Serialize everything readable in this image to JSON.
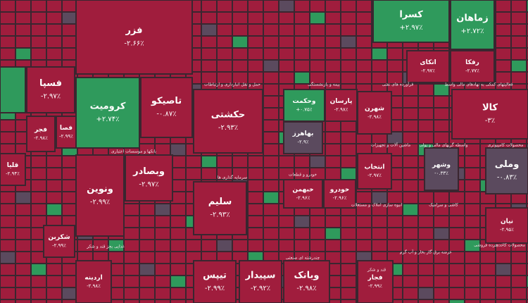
{
  "tiles": [
    {
      "name": "فزر",
      "change": "-۲.۶۶٪"
    },
    {
      "name": "کرومیت",
      "change": "+۲.۷۴٪"
    },
    {
      "name": "تاصیکو",
      "change": "-۰.۸۷٪"
    },
    {
      "name": "فسپا",
      "change": "-۲.۹۷٪"
    },
    {
      "name": "فجر",
      "change": "-۲.۹۸٪"
    },
    {
      "name": "فصا",
      "change": "-۲.۹۹٪"
    },
    {
      "name": "حکشتی",
      "change": "-۲.۹۳٪"
    },
    {
      "name": "وحکمت",
      "change": "+۰.۷۵٪"
    },
    {
      "name": "پارسان",
      "change": "-۲.۹۸٪"
    },
    {
      "name": "کسرا",
      "change": "+۲.۹۷٪"
    },
    {
      "name": "زماهان",
      "change": "+۲.۷۲٪"
    },
    {
      "name": "رفکا",
      "change": "-۲.۷۷٪"
    },
    {
      "name": "شهرن",
      "change": "-۲.۹۸٪"
    },
    {
      "name": "کالا",
      "change": "-۳٪"
    },
    {
      "name": "وشهر",
      "change": "-۰.۳۳٪"
    },
    {
      "name": "وملی",
      "change": "-۰.۸۳٪"
    },
    {
      "name": "ونوین",
      "change": "-۲.۹۹٪"
    },
    {
      "name": "وبصادر",
      "change": "-۲.۹۷٪"
    },
    {
      "name": "سلیم",
      "change": "-۲.۹۳٪"
    },
    {
      "name": "خبهمن",
      "change": "-۲.۹۶٪"
    },
    {
      "name": "خودرو",
      "change": "-۲.۹۶٪"
    },
    {
      "name": "انتخاب",
      "change": "-۲.۹۷٪"
    },
    {
      "name": "وبانک",
      "change": "-۲.۹۸٪"
    },
    {
      "name": "تیپس",
      "change": "-۲.۹۹٪"
    },
    {
      "name": "سپیدار",
      "change": "-۲.۹۲٪"
    },
    {
      "name": "فجار",
      "change": "-۲.۹۹٪"
    },
    {
      "name": "نیان",
      "change": "-۲.۹۵٪"
    },
    {
      "name": "بهاهرز",
      "change": "-۲.۹٪"
    },
    {
      "name": "قلیا",
      "change": "-۲.۹۴٪"
    },
    {
      "name": "اردینه",
      "change": "-۲.۹۸٪"
    },
    {
      "name": "شکربن",
      "change": "-۲.۹۹٪"
    },
    {
      "name": "اتکای",
      "change": "-۲.۹۷٪"
    }
  ],
  "sectors": [
    "بانکها و موسسات اعتباری",
    "حمل و نقل انبارداری و ارتباطات",
    "بیمه و بازنشستگی",
    "فرآورده های نفتی",
    "فعالیتهای کمکی به نهادهای مالی واسط",
    "ماشین آلات و تجهیزات",
    "واسطه گریهای مالی و پولی",
    "محصولات کامپیوتری",
    "سرمایه گذاری ها",
    "خودرو و قطعات",
    "غذایی بجز قند و شکر",
    "انبوه سازی املاک و مستغلات",
    "کاشی و سرامیک",
    "چندرشته ای صنعتی",
    "قند و شکر",
    "عرضه برق گاز بخار و آب گرم",
    "خرده فروشی",
    "محصولات کاغذی"
  ]
}
